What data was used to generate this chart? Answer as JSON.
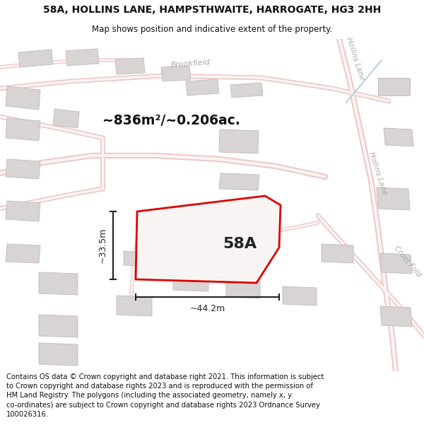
{
  "title": "58A, HOLLINS LANE, HAMPSTHWAITE, HARROGATE, HG3 2HH",
  "subtitle": "Map shows position and indicative extent of the property.",
  "area_text": "~836m²/~0.206ac.",
  "label_58A": "58A",
  "dim_width": "~44.2m",
  "dim_height": "~33.5m",
  "footer": "Contains OS data © Crown copyright and database right 2021. This information is subject to Crown copyright and database rights 2023 and is reproduced with the permission of HM Land Registry. The polygons (including the associated geometry, namely x, y co-ordinates) are subject to Crown copyright and database rights 2023 Ordnance Survey 100026316.",
  "bg_color": "#f7f0f0",
  "road_color": "#f0c8c8",
  "road_inner_color": "#faf5f5",
  "building_color": "#d8d4d4",
  "building_edge": "#c8c0c0",
  "plot_fill": "#f8f4f4",
  "plot_outline": "#dd0000",
  "dim_color": "#222222",
  "street_color": "#aaaaaa",
  "title_color": "#111111",
  "footer_color": "#111111",
  "footer_bg": "#ffffff",
  "title_bg": "#ffffff",
  "map_bg": "#f5eeee"
}
